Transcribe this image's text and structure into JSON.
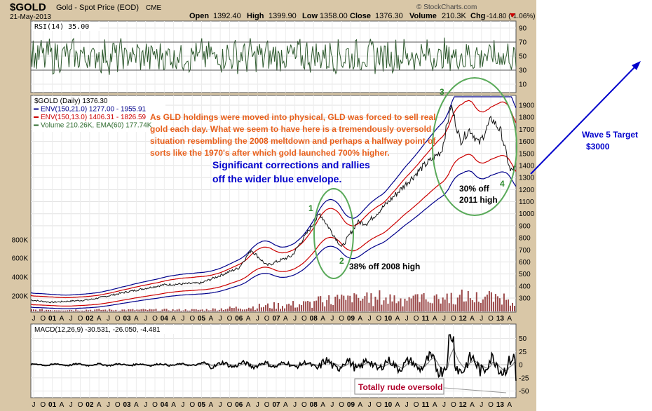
{
  "header": {
    "symbol": "$GOLD",
    "name": "Gold - Spot Price (EOD)",
    "exchange": "CME",
    "date": "21-May-2013",
    "open_label": "Open",
    "open": "1392.40",
    "high_label": "High",
    "high": "1399.90",
    "low_label": "Low",
    "low": "1358.00",
    "close_label": "Close",
    "close": "1376.30",
    "volume_label": "Volume",
    "volume": "210.3K",
    "chg_label": "Chg",
    "chg": "-14.80 (-1.06%)",
    "watermark": "© StockCharts.com"
  },
  "rsi_panel": {
    "label": "RSI(14) 35.00",
    "ticks": [
      10,
      30,
      50,
      70,
      90
    ],
    "overbought": 70,
    "oversold": 30
  },
  "price_panel": {
    "legend": [
      {
        "text": "$GOLD (Daily) 1376.30",
        "color": "#000000"
      },
      {
        "text": "ENV(150,21.0) 1277.00 - 1955.91",
        "color": "#00008b"
      },
      {
        "text": "ENV(150,13.0) 1406.31 - 1826.59",
        "color": "#cc0000"
      },
      {
        "text": "Volume 210.26K, EMA(60) 177.74K",
        "color": "#2e6b2e"
      }
    ],
    "price_ticks": [
      300,
      400,
      500,
      600,
      700,
      800,
      900,
      1000,
      1100,
      1200,
      1300,
      1400,
      1500,
      1600,
      1700,
      1800,
      1900
    ],
    "volume_ticks": [
      "200K",
      "400K",
      "600K",
      "800K"
    ]
  },
  "macd_panel": {
    "label": "MACD(12,26,9) -30.531, -26.050, -4.481",
    "ticks": [
      50,
      25,
      0,
      -25,
      -50
    ]
  },
  "x_axis": {
    "labels": [
      "J",
      "O",
      "01",
      "A",
      "J",
      "O",
      "02",
      "A",
      "J",
      "O",
      "03",
      "A",
      "J",
      "O",
      "04",
      "A",
      "J",
      "O",
      "05",
      "A",
      "J",
      "O",
      "06",
      "A",
      "J",
      "O",
      "07",
      "A",
      "J",
      "O",
      "08",
      "A",
      "J",
      "O",
      "09",
      "A",
      "J",
      "O",
      "10",
      "A",
      "J",
      "O",
      "11",
      "A",
      "J",
      "O",
      "12",
      "A",
      "J",
      "O",
      "13",
      "A"
    ]
  },
  "annotations": {
    "orange_note": [
      "As GLD holdings were moved into physical, GLD was forced to sell real",
      "gold each day. What we seem to have here is a tremendously oversold",
      "situation resembling the 2008 meltdown and perhaps a halfway point of",
      "sorts like the 1970's after which gold launched 700% higher."
    ],
    "blue_note": [
      "Significant corrections and rallies",
      "off the wider blue envelope."
    ],
    "wave1": "1",
    "wave2": "2",
    "wave3": "3",
    "wave4": "4",
    "off2008": "38% off 2008 high",
    "off2011": [
      "30% off",
      "2011 high"
    ],
    "wave5": [
      "Wave 5 Target",
      "$3000"
    ],
    "rude": "Totally rude oversold"
  },
  "colors": {
    "frame": "#d9c7a7",
    "panel": "#ffffff",
    "price": "#111111",
    "outer_envelope": "#00008b",
    "inner_envelope": "#cc0000",
    "volume": "#8b2a2a",
    "rsi": "#2e5a2e",
    "macd": "#000000",
    "signal": "#808080",
    "orange_text": "#e8601c",
    "blue_text": "#0000cc",
    "ellipse": "#5aaa5a",
    "arrow": "#0000cc"
  },
  "chart_data": {
    "type": "line",
    "title": "Gold - Spot Price (EOD)",
    "date_range": [
      "2000-06",
      "2013-05"
    ],
    "series": [
      {
        "name": "$GOLD (Daily)",
        "x": [
          "2000-06",
          "2001-01",
          "2002-01",
          "2003-01",
          "2004-01",
          "2005-01",
          "2006-01",
          "2006-05",
          "2006-10",
          "2007-06",
          "2008-03",
          "2008-06",
          "2008-10",
          "2009-03",
          "2009-06",
          "2010-01",
          "2010-12",
          "2011-06",
          "2011-09",
          "2011-12",
          "2012-03",
          "2012-06",
          "2012-10",
          "2013-01",
          "2013-04",
          "2013-05"
        ],
        "values": [
          285,
          265,
          285,
          350,
          410,
          425,
          550,
          700,
          570,
          650,
          1000,
          880,
          720,
          930,
          920,
          1100,
          1390,
          1520,
          1900,
          1600,
          1700,
          1580,
          1790,
          1680,
          1350,
          1376
        ]
      },
      {
        "name": "ENV(150,21.0) Upper",
        "values": [
          1955.91
        ]
      },
      {
        "name": "ENV(150,21.0) Lower",
        "values": [
          1277.0
        ]
      },
      {
        "name": "ENV(150,13.0) Upper",
        "values": [
          1826.59
        ]
      },
      {
        "name": "ENV(150,13.0) Lower",
        "values": [
          1406.31
        ]
      },
      {
        "name": "Volume",
        "values": [
          210.26
        ]
      },
      {
        "name": "EMA(60) of Volume",
        "values": [
          177.74
        ]
      }
    ],
    "indicators": {
      "RSI(14)": 35.0,
      "MACD(12,26,9)": [
        -30.531,
        -26.05,
        -4.481
      ]
    },
    "price_axis": [
      300,
      1900
    ],
    "rsi_axis": [
      10,
      90
    ],
    "macd_axis": [
      -60,
      60
    ],
    "grid": true,
    "legend_placement": "top-left"
  }
}
